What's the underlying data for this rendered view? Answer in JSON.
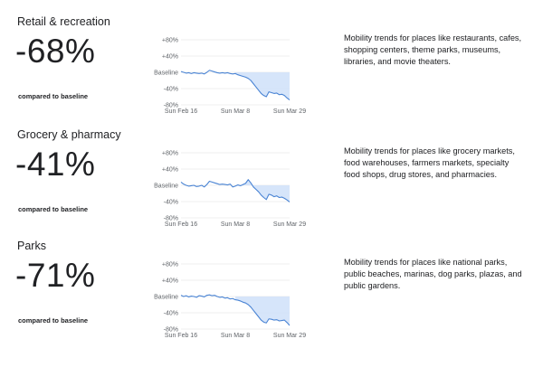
{
  "caption": "compared to baseline",
  "colors": {
    "line": "#4a84d4",
    "fill": "#cfe1f9",
    "grid": "#e0e0e0",
    "axis": "#5f6368"
  },
  "chart_data": [
    {
      "type": "area",
      "title": "Retail & recreation",
      "headline": "-68%",
      "description": "Mobility trends for places like restaurants, cafes, shopping centers, theme parks, museums, libraries, and movie theaters.",
      "y_ticks": [
        "+80%",
        "+40%",
        "Baseline",
        "-40%",
        "-80%"
      ],
      "x_ticks": [
        "Sun Feb 16",
        "Sun Mar 8",
        "Sun Mar 29"
      ],
      "ylim": [
        -80,
        80
      ],
      "x_range": [
        "2020-02-16",
        "2020-03-29"
      ],
      "x": [
        "2020-02-16",
        "2020-02-17",
        "2020-02-18",
        "2020-02-19",
        "2020-02-20",
        "2020-02-21",
        "2020-02-22",
        "2020-02-23",
        "2020-02-24",
        "2020-02-25",
        "2020-02-26",
        "2020-02-27",
        "2020-02-28",
        "2020-02-29",
        "2020-03-01",
        "2020-03-02",
        "2020-03-03",
        "2020-03-04",
        "2020-03-05",
        "2020-03-06",
        "2020-03-07",
        "2020-03-08",
        "2020-03-09",
        "2020-03-10",
        "2020-03-11",
        "2020-03-12",
        "2020-03-13",
        "2020-03-14",
        "2020-03-15",
        "2020-03-16",
        "2020-03-17",
        "2020-03-18",
        "2020-03-19",
        "2020-03-20",
        "2020-03-21",
        "2020-03-22",
        "2020-03-23",
        "2020-03-24",
        "2020-03-25",
        "2020-03-26",
        "2020-03-27",
        "2020-03-28",
        "2020-03-29"
      ],
      "values": [
        2,
        0,
        -2,
        -1,
        -3,
        -1,
        -2,
        -3,
        -2,
        -4,
        0,
        5,
        3,
        1,
        -1,
        -2,
        -1,
        -2,
        -1,
        -3,
        -4,
        -3,
        -6,
        -8,
        -10,
        -12,
        -15,
        -20,
        -28,
        -36,
        -44,
        -52,
        -57,
        -60,
        -48,
        -50,
        -52,
        -51,
        -55,
        -54,
        -57,
        -63,
        -68
      ]
    },
    {
      "type": "area",
      "title": "Grocery & pharmacy",
      "headline": "-41%",
      "description": "Mobility trends for places like grocery markets, food warehouses, farmers markets, specialty food shops, drug stores, and pharmacies.",
      "y_ticks": [
        "+80%",
        "+40%",
        "Baseline",
        "-40%",
        "-80%"
      ],
      "x_ticks": [
        "Sun Feb 16",
        "Sun Mar 8",
        "Sun Mar 29"
      ],
      "ylim": [
        -80,
        80
      ],
      "x_range": [
        "2020-02-16",
        "2020-03-29"
      ],
      "x": [
        "2020-02-16",
        "2020-02-17",
        "2020-02-18",
        "2020-02-19",
        "2020-02-20",
        "2020-02-21",
        "2020-02-22",
        "2020-02-23",
        "2020-02-24",
        "2020-02-25",
        "2020-02-26",
        "2020-02-27",
        "2020-02-28",
        "2020-02-29",
        "2020-03-01",
        "2020-03-02",
        "2020-03-03",
        "2020-03-04",
        "2020-03-05",
        "2020-03-06",
        "2020-03-07",
        "2020-03-08",
        "2020-03-09",
        "2020-03-10",
        "2020-03-11",
        "2020-03-12",
        "2020-03-13",
        "2020-03-14",
        "2020-03-15",
        "2020-03-16",
        "2020-03-17",
        "2020-03-18",
        "2020-03-19",
        "2020-03-20",
        "2020-03-21",
        "2020-03-22",
        "2020-03-23",
        "2020-03-24",
        "2020-03-25",
        "2020-03-26",
        "2020-03-27",
        "2020-03-28",
        "2020-03-29"
      ],
      "values": [
        8,
        3,
        0,
        -2,
        -1,
        0,
        -3,
        -2,
        0,
        -4,
        2,
        10,
        8,
        6,
        4,
        2,
        3,
        2,
        1,
        3,
        -4,
        -2,
        1,
        -1,
        2,
        5,
        14,
        6,
        -4,
        -10,
        -16,
        -24,
        -30,
        -35,
        -22,
        -24,
        -28,
        -26,
        -30,
        -29,
        -32,
        -36,
        -41
      ]
    },
    {
      "type": "area",
      "title": "Parks",
      "headline": "-71%",
      "description": "Mobility trends for places like national parks, public beaches, marinas, dog parks, plazas, and public gardens.",
      "y_ticks": [
        "+80%",
        "+40%",
        "Baseline",
        "-40%",
        "-80%"
      ],
      "x_ticks": [
        "Sun Feb 16",
        "Sun Mar 8",
        "Sun Mar 29"
      ],
      "ylim": [
        -80,
        80
      ],
      "x_range": [
        "2020-02-16",
        "2020-03-29"
      ],
      "x": [
        "2020-02-16",
        "2020-02-17",
        "2020-02-18",
        "2020-02-19",
        "2020-02-20",
        "2020-02-21",
        "2020-02-22",
        "2020-02-23",
        "2020-02-24",
        "2020-02-25",
        "2020-02-26",
        "2020-02-27",
        "2020-02-28",
        "2020-02-29",
        "2020-03-01",
        "2020-03-02",
        "2020-03-03",
        "2020-03-04",
        "2020-03-05",
        "2020-03-06",
        "2020-03-07",
        "2020-03-08",
        "2020-03-09",
        "2020-03-10",
        "2020-03-11",
        "2020-03-12",
        "2020-03-13",
        "2020-03-14",
        "2020-03-15",
        "2020-03-16",
        "2020-03-17",
        "2020-03-18",
        "2020-03-19",
        "2020-03-20",
        "2020-03-21",
        "2020-03-22",
        "2020-03-23",
        "2020-03-24",
        "2020-03-25",
        "2020-03-26",
        "2020-03-27",
        "2020-03-28",
        "2020-03-29"
      ],
      "values": [
        3,
        0,
        2,
        -1,
        1,
        0,
        -2,
        2,
        1,
        -1,
        3,
        4,
        2,
        3,
        0,
        -2,
        -1,
        -4,
        -3,
        -6,
        -5,
        -8,
        -9,
        -11,
        -14,
        -16,
        -20,
        -26,
        -34,
        -42,
        -50,
        -58,
        -63,
        -65,
        -55,
        -56,
        -58,
        -57,
        -60,
        -59,
        -58,
        -64,
        -71
      ]
    }
  ]
}
